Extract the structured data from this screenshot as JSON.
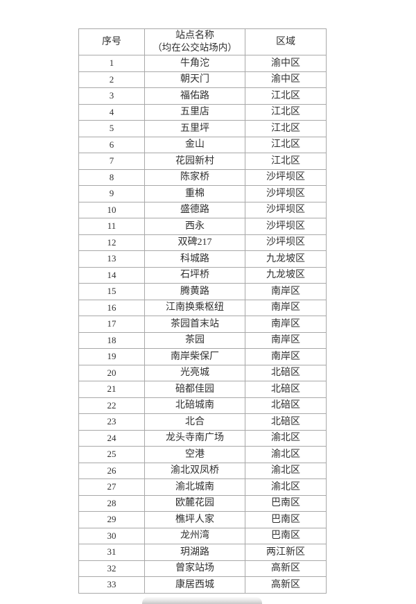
{
  "table": {
    "headers": {
      "no": "序号",
      "name_line1": "站点名称",
      "name_line2": "（均在公交站场内）",
      "district": "区域"
    },
    "rows": [
      {
        "no": "1",
        "name": "牛角沱",
        "district": "渝中区"
      },
      {
        "no": "2",
        "name": "朝天门",
        "district": "渝中区"
      },
      {
        "no": "3",
        "name": "福佑路",
        "district": "江北区"
      },
      {
        "no": "4",
        "name": "五里店",
        "district": "江北区"
      },
      {
        "no": "5",
        "name": "五里坪",
        "district": "江北区"
      },
      {
        "no": "6",
        "name": "金山",
        "district": "江北区"
      },
      {
        "no": "7",
        "name": "花园新村",
        "district": "江北区"
      },
      {
        "no": "8",
        "name": "陈家桥",
        "district": "沙坪坝区"
      },
      {
        "no": "9",
        "name": "重棉",
        "district": "沙坪坝区"
      },
      {
        "no": "10",
        "name": "盛德路",
        "district": "沙坪坝区"
      },
      {
        "no": "11",
        "name": "西永",
        "district": "沙坪坝区"
      },
      {
        "no": "12",
        "name": "双碑217",
        "district": "沙坪坝区"
      },
      {
        "no": "13",
        "name": "科城路",
        "district": "九龙坡区"
      },
      {
        "no": "14",
        "name": "石坪桥",
        "district": "九龙坡区"
      },
      {
        "no": "15",
        "name": "腾黄路",
        "district": "南岸区"
      },
      {
        "no": "16",
        "name": "江南换乘枢纽",
        "district": "南岸区"
      },
      {
        "no": "17",
        "name": "茶园首末站",
        "district": "南岸区"
      },
      {
        "no": "18",
        "name": "茶园",
        "district": "南岸区"
      },
      {
        "no": "19",
        "name": "南岸柴保厂",
        "district": "南岸区"
      },
      {
        "no": "20",
        "name": "光亮城",
        "district": "北碚区"
      },
      {
        "no": "21",
        "name": "碚都佳园",
        "district": "北碚区"
      },
      {
        "no": "22",
        "name": "北碚城南",
        "district": "北碚区"
      },
      {
        "no": "23",
        "name": "北合",
        "district": "北碚区"
      },
      {
        "no": "24",
        "name": "龙头寺南广场",
        "district": "渝北区"
      },
      {
        "no": "25",
        "name": "空港",
        "district": "渝北区"
      },
      {
        "no": "26",
        "name": "渝北双凤桥",
        "district": "渝北区"
      },
      {
        "no": "27",
        "name": "渝北城南",
        "district": "渝北区"
      },
      {
        "no": "28",
        "name": "欧麓花园",
        "district": "巴南区"
      },
      {
        "no": "29",
        "name": "樵坪人家",
        "district": "巴南区"
      },
      {
        "no": "30",
        "name": "龙州湾",
        "district": "巴南区"
      },
      {
        "no": "31",
        "name": "玥湖路",
        "district": "两江新区"
      },
      {
        "no": "32",
        "name": "曾家站场",
        "district": "高新区"
      },
      {
        "no": "33",
        "name": "康居西城",
        "district": "高新区"
      }
    ]
  },
  "colors": {
    "border": "#a8a8a8",
    "text": "#2f2f2f",
    "background": "#ffffff"
  }
}
